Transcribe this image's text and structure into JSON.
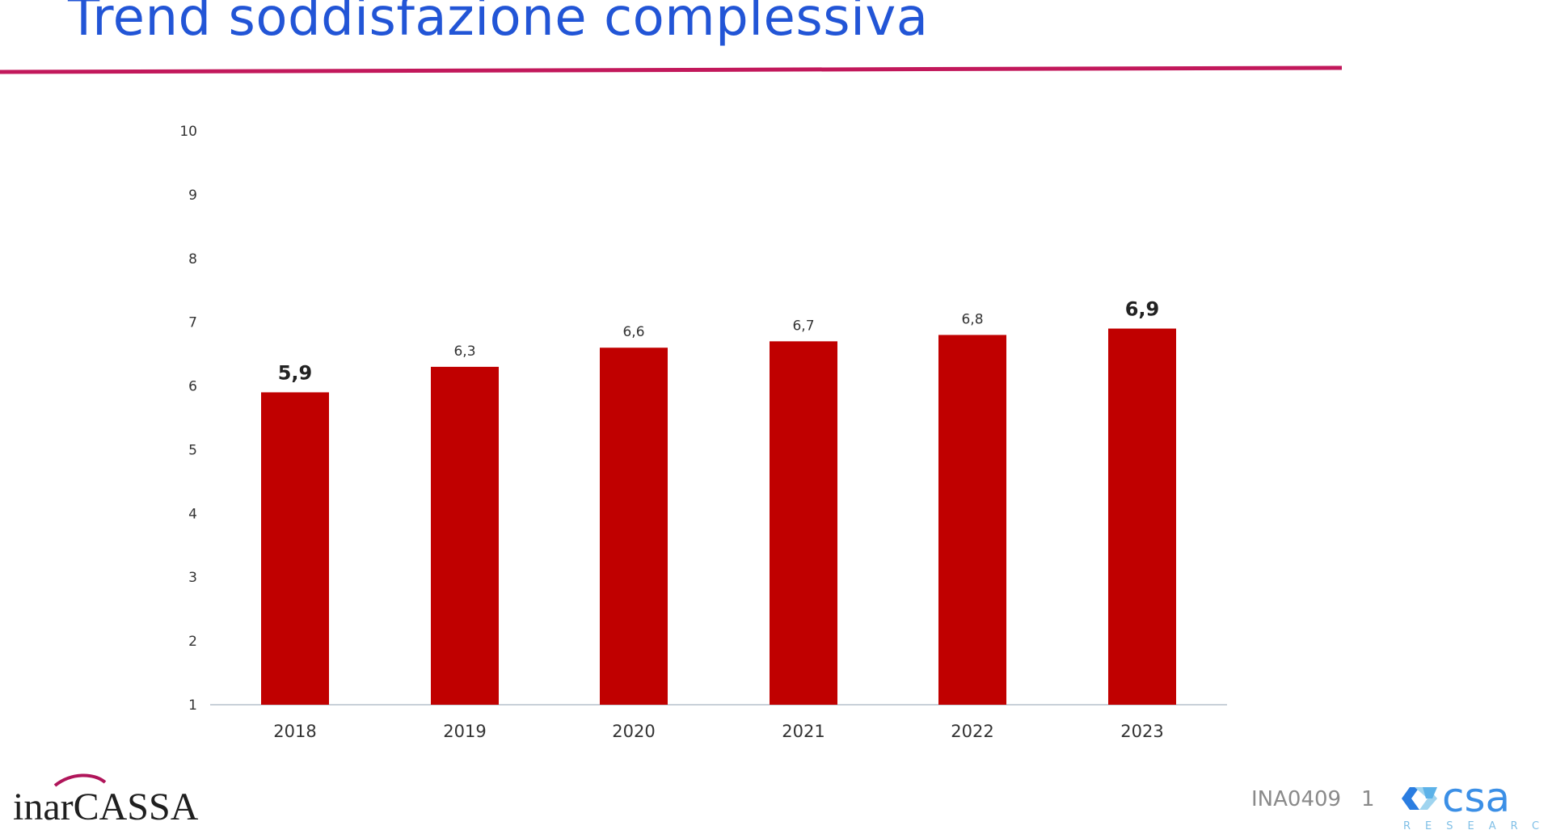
{
  "slide": {
    "title": "Trend soddisfazione complessiva",
    "code": "INA0409",
    "page_number": "1"
  },
  "logos": {
    "left": "inarCASSA",
    "right_main": "csa",
    "right_sub": "RESEARCH"
  },
  "colors": {
    "title": "#2255d6",
    "rule": "#c2185b",
    "bar": "#c00000",
    "axis": "#c8d0d8"
  },
  "chart_data": {
    "type": "bar",
    "categories": [
      "2018",
      "2019",
      "2020",
      "2021",
      "2022",
      "2023"
    ],
    "values": [
      5.9,
      6.3,
      6.6,
      6.7,
      6.8,
      6.9
    ],
    "data_labels": [
      "5,9",
      "6,3",
      "6,6",
      "6,7",
      "6,8",
      "6,9"
    ],
    "highlighted": [
      true,
      false,
      false,
      false,
      false,
      true
    ],
    "y_ticks": [
      "1",
      "2",
      "3",
      "4",
      "5",
      "6",
      "7",
      "8",
      "9",
      "10"
    ],
    "ylim": [
      1,
      10
    ],
    "grid": false,
    "legend": "none"
  }
}
